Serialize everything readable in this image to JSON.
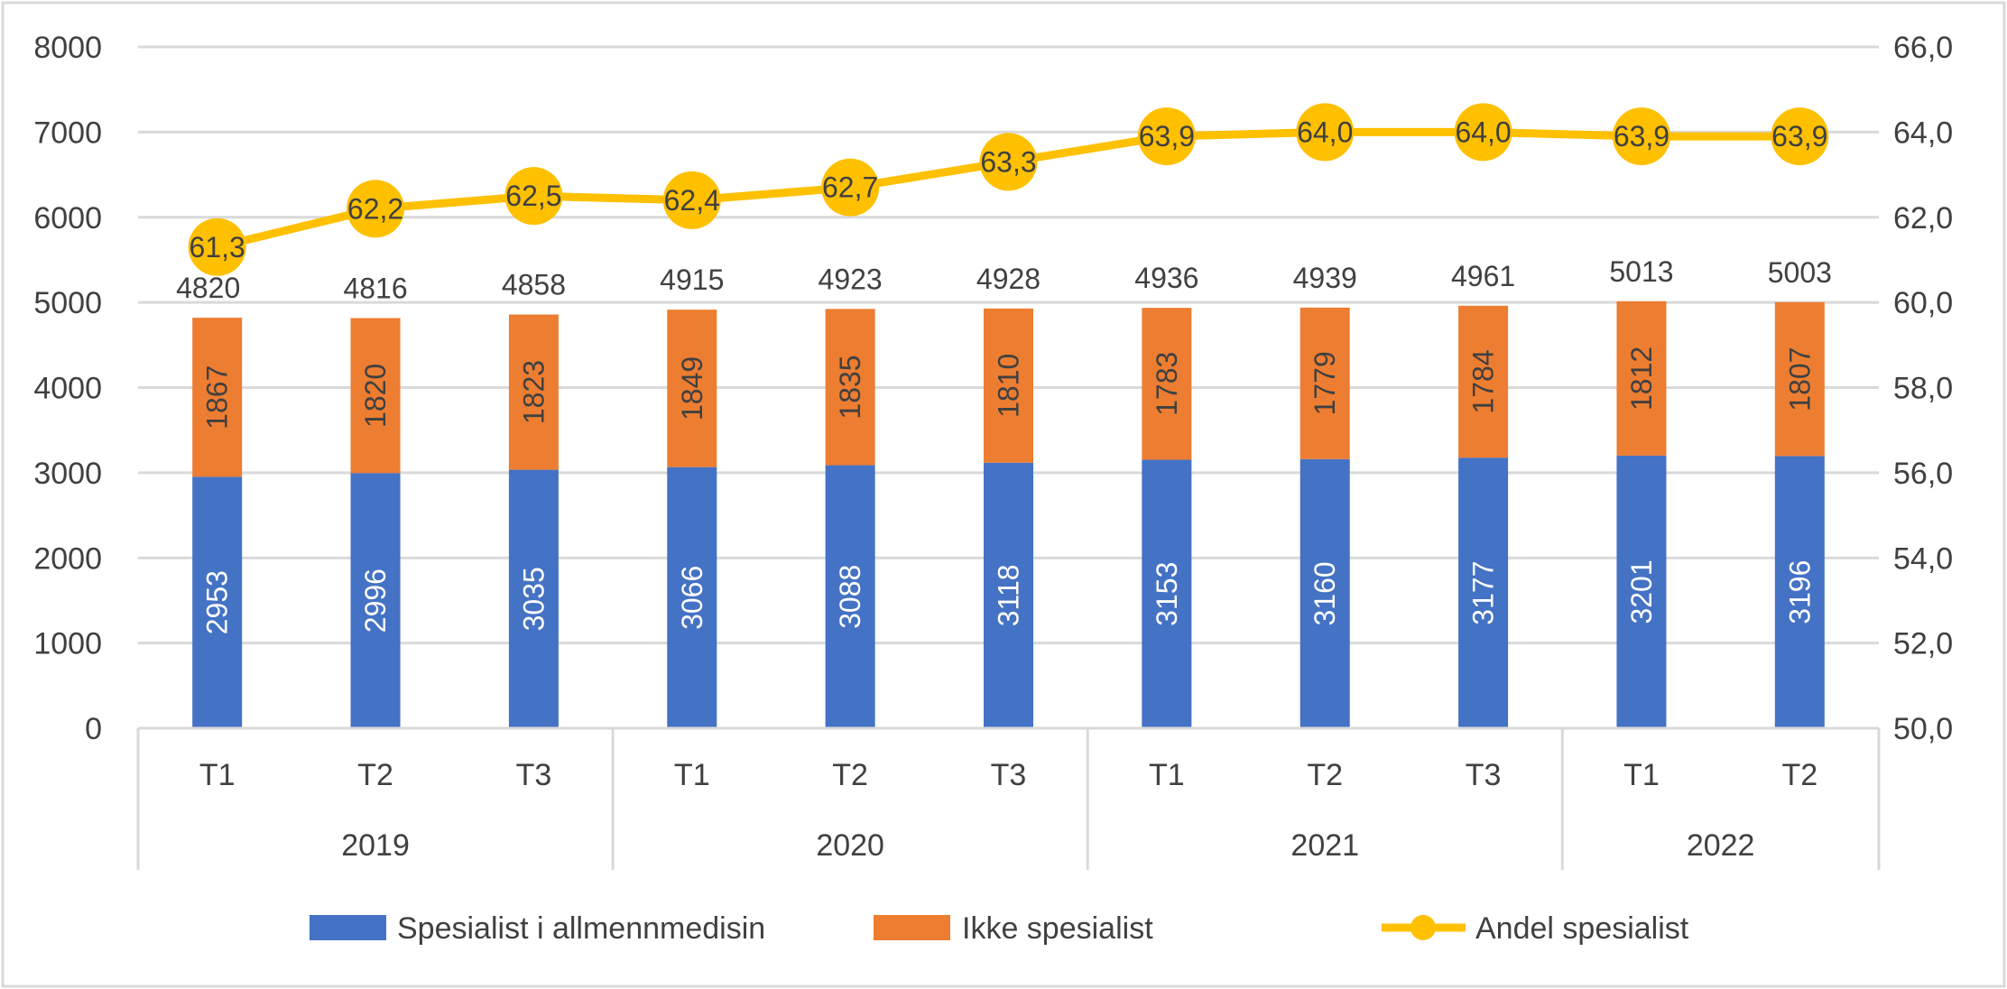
{
  "chart_data": {
    "type": "bar",
    "stacked": true,
    "categories": [
      {
        "year": "2019",
        "period": "T1"
      },
      {
        "year": "2019",
        "period": "T2"
      },
      {
        "year": "2019",
        "period": "T3"
      },
      {
        "year": "2020",
        "period": "T1"
      },
      {
        "year": "2020",
        "period": "T2"
      },
      {
        "year": "2020",
        "period": "T3"
      },
      {
        "year": "2021",
        "period": "T1"
      },
      {
        "year": "2021",
        "period": "T2"
      },
      {
        "year": "2021",
        "period": "T3"
      },
      {
        "year": "2022",
        "period": "T1"
      },
      {
        "year": "2022",
        "period": "T2"
      }
    ],
    "years": [
      "2019",
      "2020",
      "2021",
      "2022"
    ],
    "series": [
      {
        "name": "Spesialist i allmennmedisin",
        "type": "bar",
        "axis": "left",
        "color": "#4472C4",
        "values": [
          2953,
          2996,
          3035,
          3066,
          3088,
          3118,
          3153,
          3160,
          3177,
          3201,
          3196
        ]
      },
      {
        "name": "Ikke spesialist",
        "type": "bar",
        "axis": "left",
        "color": "#ED7D31",
        "values": [
          1867,
          1820,
          1823,
          1849,
          1835,
          1810,
          1783,
          1779,
          1784,
          1812,
          1807
        ]
      },
      {
        "name": "Andel spesialist",
        "type": "line",
        "axis": "right",
        "color": "#FFC000",
        "marker": "circle",
        "values": [
          "61,3",
          "62,2",
          "62,5",
          "62,4",
          "62,7",
          "63,3",
          "63,9",
          "64,0",
          "64,0",
          "63,9",
          "63,9"
        ]
      }
    ],
    "totals": [
      4820,
      4816,
      4858,
      4915,
      4923,
      4928,
      4936,
      4939,
      4961,
      5013,
      5003
    ],
    "y_left": {
      "min": 0,
      "max": 8000,
      "ticks": [
        "0",
        "1000",
        "2000",
        "3000",
        "4000",
        "5000",
        "6000",
        "7000",
        "8000"
      ]
    },
    "y_right": {
      "min": 50,
      "max": 66,
      "ticks": [
        "50,0",
        "52,0",
        "54,0",
        "56,0",
        "58,0",
        "60,0",
        "62,0",
        "64,0",
        "66,0"
      ]
    },
    "grid": true,
    "legend_position": "bottom"
  }
}
